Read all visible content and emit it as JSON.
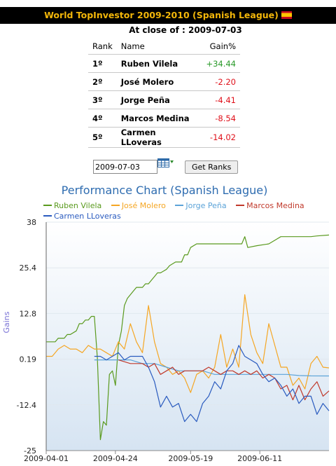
{
  "header": {
    "title": "World TopInvestor 2009-2010 (Spanish League)"
  },
  "close_label": "At close of : 2009-07-03",
  "ranking": {
    "headers": {
      "rank": "Rank",
      "name": "Name",
      "gain": "Gain%"
    },
    "rows": [
      {
        "rank": "1º",
        "name": "Ruben Vilela",
        "gain": "+34.44",
        "sign": "pos"
      },
      {
        "rank": "2º",
        "name": "José Molero",
        "gain": "-2.20",
        "sign": "neg"
      },
      {
        "rank": "3º",
        "name": "Jorge Peña",
        "gain": "-4.41",
        "sign": "neg"
      },
      {
        "rank": "4º",
        "name": "Marcos Medina",
        "gain": "-8.54",
        "sign": "neg"
      },
      {
        "rank": "5º",
        "name": "Carmen LLoveras",
        "gain": "-14.02",
        "sign": "neg"
      }
    ]
  },
  "controls": {
    "date_value": "2009-07-03",
    "button_label": "Get Ranks"
  },
  "chart_data": {
    "type": "line",
    "title": "Performance Chart (Spanish League)",
    "ylabel": "Gains",
    "ylim": [
      -25,
      38
    ],
    "yticks": [
      "38",
      "25.4",
      "12.8",
      "0.19",
      "-12.4",
      "-25"
    ],
    "xticks": [
      {
        "label": "2009-04-01",
        "x": 0
      },
      {
        "label": "2009-04-24",
        "x": 23
      },
      {
        "label": "2009-05-19",
        "x": 48
      },
      {
        "label": "2009-06-11",
        "x": 71
      }
    ],
    "xlim": [
      0,
      94
    ],
    "grid": true,
    "legend_position": "top",
    "series": [
      {
        "name": "Ruben Vilela",
        "color": "#5a9a1e",
        "x": [
          0,
          3,
          4,
          6,
          7,
          8,
          10,
          11,
          12,
          13,
          14,
          15,
          16,
          17,
          18,
          19,
          20,
          21,
          22,
          23,
          24,
          25,
          26,
          27,
          28,
          29,
          30,
          31,
          32,
          33,
          34,
          35,
          36,
          37,
          38,
          39,
          40,
          41,
          42,
          43,
          44,
          45,
          46,
          47,
          48,
          50,
          52,
          55,
          58,
          62,
          65,
          66,
          67,
          70,
          74,
          76,
          78,
          80,
          84,
          88,
          90,
          94
        ],
        "y": [
          5,
          5,
          6,
          6,
          7,
          7,
          8,
          10,
          10,
          11,
          11,
          12,
          12,
          0.5,
          -22,
          -17,
          -18,
          -4,
          -3,
          -7,
          4,
          8,
          15,
          17,
          18,
          19,
          20,
          20,
          20,
          21,
          21,
          22,
          23,
          24,
          24,
          24.5,
          25,
          26,
          26.5,
          27,
          27,
          27,
          29,
          29,
          31,
          32,
          32,
          32,
          32,
          32,
          32,
          34,
          31,
          31.5,
          32,
          33,
          34,
          34,
          34,
          34,
          34.2,
          34.44
        ]
      },
      {
        "name": "José Molero",
        "color": "#f5a623",
        "x": [
          0,
          2,
          4,
          6,
          8,
          10,
          12,
          14,
          16,
          18,
          20,
          22,
          24,
          26,
          28,
          30,
          32,
          34,
          36,
          38,
          40,
          42,
          44,
          46,
          48,
          50,
          52,
          54,
          56,
          58,
          60,
          62,
          64,
          66,
          68,
          70,
          72,
          74,
          76,
          78,
          80,
          82,
          84,
          86,
          88,
          90,
          92,
          94
        ],
        "y": [
          1,
          1,
          3,
          4,
          3,
          3,
          2,
          4,
          3,
          3,
          2,
          1,
          5,
          3,
          10,
          5,
          2,
          15,
          5,
          -1,
          -2,
          -4,
          -3,
          -5,
          -9,
          -4,
          -3,
          -5,
          -2,
          7,
          -2,
          3,
          -2,
          18,
          7,
          2,
          -1,
          10,
          4,
          -2,
          -2,
          -7,
          -5,
          -8,
          -1,
          1,
          -2,
          -2.2
        ]
      },
      {
        "name": "Jorge Peña",
        "color": "#5ba3d8",
        "x": [
          16,
          20,
          24,
          28,
          32,
          36,
          40,
          44,
          48,
          52,
          56,
          60,
          64,
          68,
          72,
          76,
          80,
          84,
          88,
          94
        ],
        "y": [
          0,
          0,
          0,
          0,
          -1,
          -1,
          -2,
          -3,
          -3,
          -3,
          -4,
          -4,
          -4,
          -4,
          -4,
          -4,
          -4,
          -4.3,
          -4.4,
          -4.41
        ]
      },
      {
        "name": "Marcos Medina",
        "color": "#c0392b",
        "x": [
          24,
          28,
          32,
          34,
          36,
          38,
          40,
          42,
          44,
          46,
          48,
          50,
          52,
          54,
          56,
          58,
          60,
          62,
          64,
          66,
          68,
          70,
          72,
          74,
          76,
          78,
          80,
          82,
          84,
          86,
          88,
          90,
          92,
          94
        ],
        "y": [
          0,
          -1,
          -1,
          -2,
          -1,
          -4,
          -3,
          -2,
          -4,
          -3,
          -3,
          -3,
          -3,
          -2,
          -3,
          -4,
          -3,
          -3,
          -4,
          -3,
          -4,
          -3,
          -5,
          -4,
          -5,
          -8,
          -7,
          -11,
          -7,
          -11,
          -8,
          -6,
          -10,
          -8.54
        ]
      },
      {
        "name": "Carmen LLoveras",
        "color": "#2a5bbf",
        "x": [
          16,
          18,
          20,
          22,
          24,
          26,
          28,
          30,
          32,
          34,
          36,
          38,
          40,
          42,
          44,
          46,
          48,
          50,
          52,
          54,
          56,
          58,
          60,
          62,
          64,
          66,
          68,
          70,
          72,
          74,
          76,
          78,
          80,
          82,
          84,
          86,
          88,
          90,
          92,
          94
        ],
        "y": [
          1,
          1,
          0,
          1,
          2,
          0,
          1,
          1,
          1,
          -2,
          -6,
          -13,
          -10,
          -13,
          -12,
          -17,
          -15,
          -17,
          -12,
          -10,
          -6,
          -8,
          -3,
          -1,
          4,
          1,
          0,
          -1,
          -4,
          -6,
          -5,
          -7,
          -10,
          -8,
          -12,
          -10,
          -10,
          -15,
          -12,
          -14.02
        ]
      }
    ]
  }
}
